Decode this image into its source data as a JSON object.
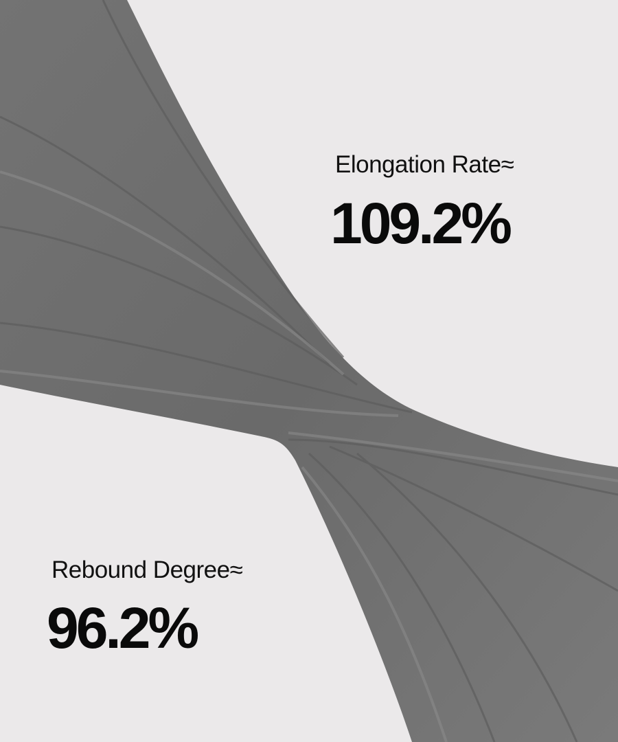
{
  "colors": {
    "background": "#ebe9ea",
    "fabric": "#707070",
    "text": "#111111"
  },
  "stats": [
    {
      "label": "Elongation Rate≈",
      "value": "109.2%"
    },
    {
      "label": "Rebound Degree≈",
      "value": "96.2%"
    }
  ]
}
